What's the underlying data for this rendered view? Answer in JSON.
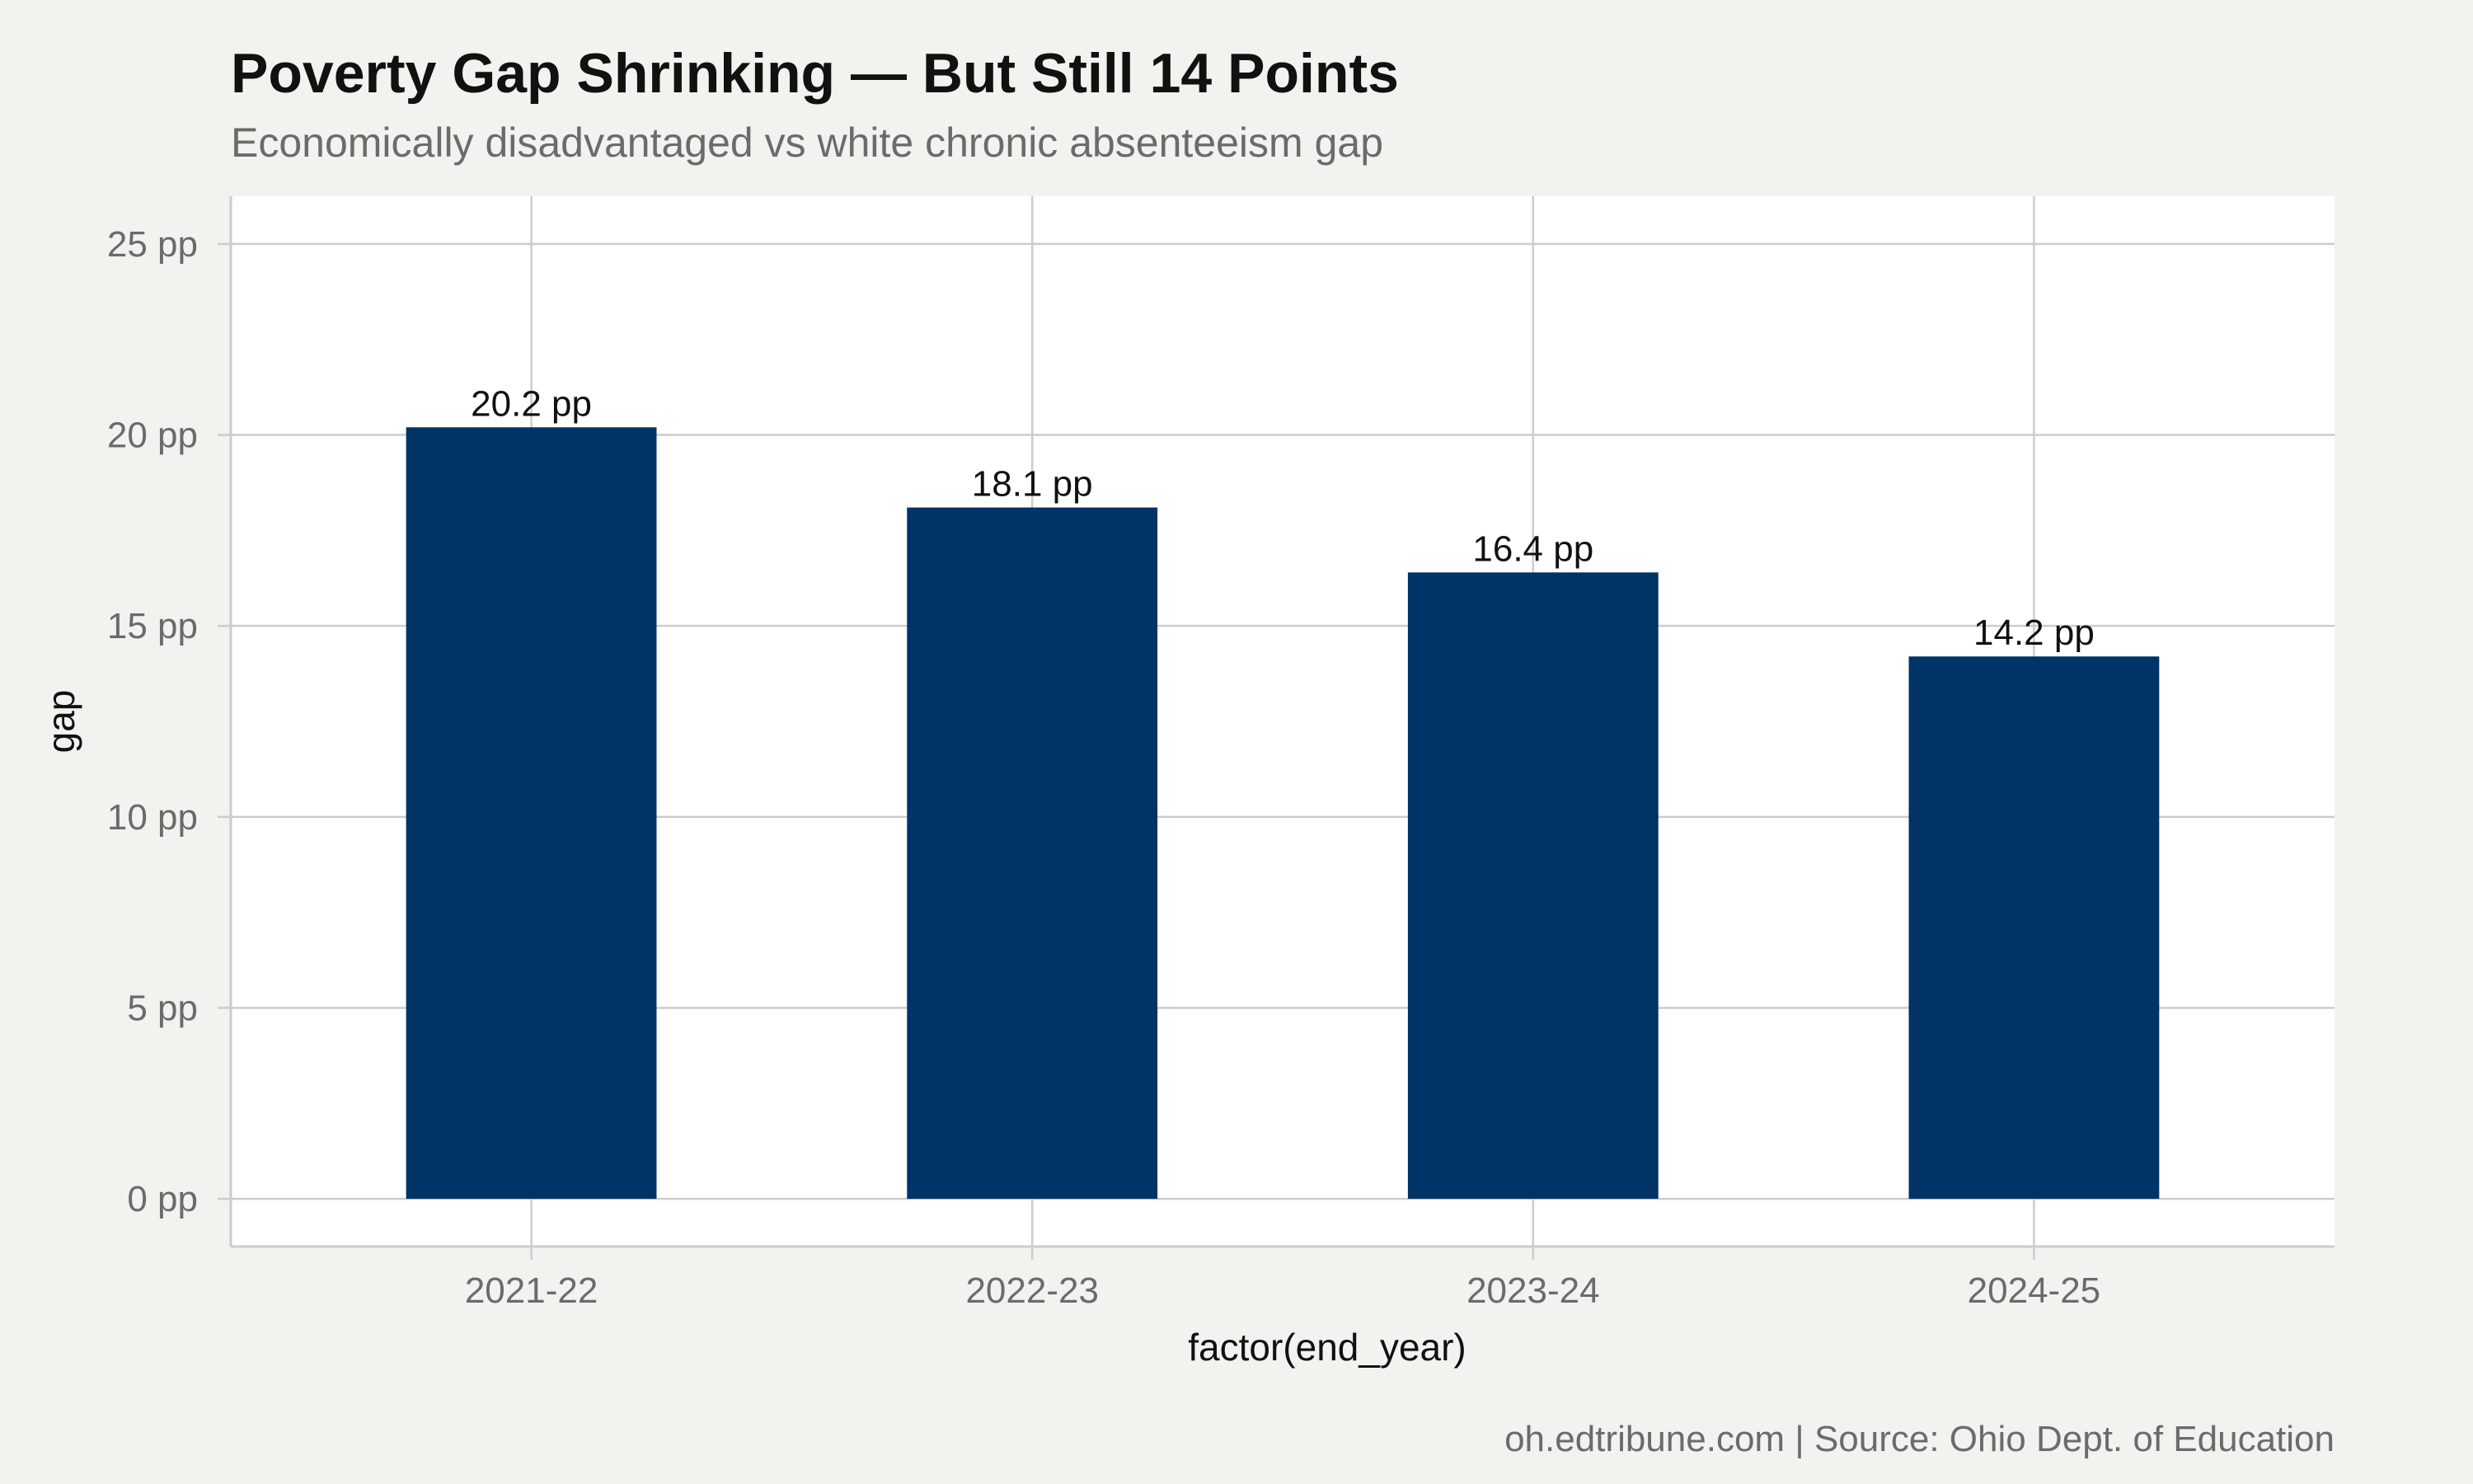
{
  "chart_data": {
    "type": "bar",
    "title": "Poverty Gap Shrinking — But Still 14 Points",
    "subtitle": "Economically disadvantaged vs white chronic absenteeism gap",
    "caption": "oh.edtribune.com | Source: Ohio Dept. of Education",
    "xlabel": "factor(end_year)",
    "ylabel": "gap",
    "categories": [
      "2021-22",
      "2022-23",
      "2023-24",
      "2024-25"
    ],
    "values": [
      20.2,
      18.1,
      16.4,
      14.2
    ],
    "value_labels": [
      "20.2 pp",
      "18.1 pp",
      "16.4 pp",
      "14.2 pp"
    ],
    "ylim": [
      -1.25,
      26.25
    ],
    "yticks": [
      0,
      5,
      10,
      15,
      20,
      25
    ],
    "ytick_labels": [
      "0 pp",
      "5 pp",
      "10 pp",
      "15 pp",
      "20 pp",
      "25 pp"
    ],
    "grid": true,
    "colors": {
      "bar": "#003366",
      "panel": "#ffffff",
      "background": "#f4f2ee",
      "grid": "#cccccc",
      "axis_text": "#6b6b6b",
      "title_text": "#111111"
    }
  }
}
